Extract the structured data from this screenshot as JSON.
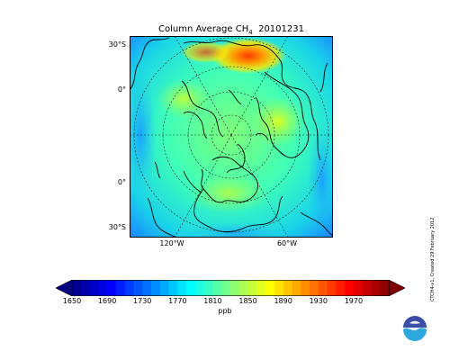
{
  "map": {
    "title_prefix": "Column Average CH",
    "title_sub": "4",
    "title_date": "20101231",
    "lat_labels": [
      "30°S",
      "0°",
      "0°",
      "30°S"
    ],
    "lon_labels": [
      "120°W",
      "60°W"
    ],
    "projection": "polar-stereographic-north",
    "field_colormap": "jet"
  },
  "colorbar": {
    "ticks": [
      "1650",
      "1690",
      "1730",
      "1770",
      "1810",
      "1850",
      "1890",
      "1930",
      "1970"
    ],
    "unit_label": "ppb",
    "range": [
      1650,
      2010
    ],
    "extend": "both"
  },
  "credit": {
    "text": "CTCH4-v1, Created 29 February 2012"
  },
  "logo": {
    "text": "noaa"
  }
}
